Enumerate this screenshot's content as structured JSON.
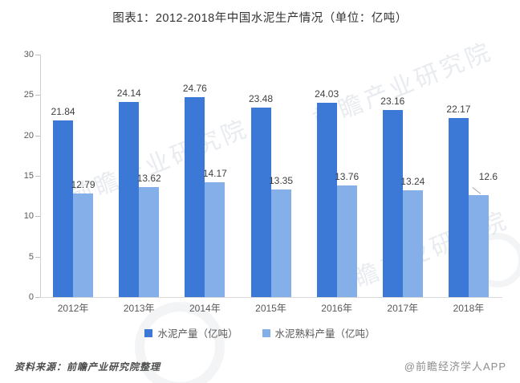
{
  "title": "图表1：2012-2018年中国水泥生产情况（单位：亿吨）",
  "source_note": "资料来源：前瞻产业研究院整理",
  "credit": "@前瞻经济学人APP",
  "watermark": "前瞻产业研究院",
  "chart_data": {
    "type": "bar",
    "title": "图表1：2012-2018年中国水泥生产情况（单位：亿吨）",
    "categories": [
      "2012年",
      "2013年",
      "2014年",
      "2015年",
      "2016年",
      "2017年",
      "2018年"
    ],
    "series": [
      {
        "name": "水泥产量（亿吨）",
        "color": "#3c79d6",
        "values": [
          21.84,
          24.14,
          24.76,
          23.48,
          24.03,
          23.16,
          22.17
        ]
      },
      {
        "name": "水泥熟料产量（亿吨）",
        "color": "#85afe8",
        "values": [
          12.79,
          13.62,
          14.17,
          13.35,
          13.76,
          13.24,
          12.6
        ]
      }
    ],
    "xlabel": "",
    "ylabel": "",
    "ylim": [
      0,
      30
    ],
    "yticks": [
      0,
      5,
      10,
      15,
      20,
      25,
      30
    ],
    "grid": false,
    "legend_position": "bottom",
    "data_labels": true,
    "callout_points": [
      {
        "series": 1,
        "index": 6
      }
    ]
  }
}
